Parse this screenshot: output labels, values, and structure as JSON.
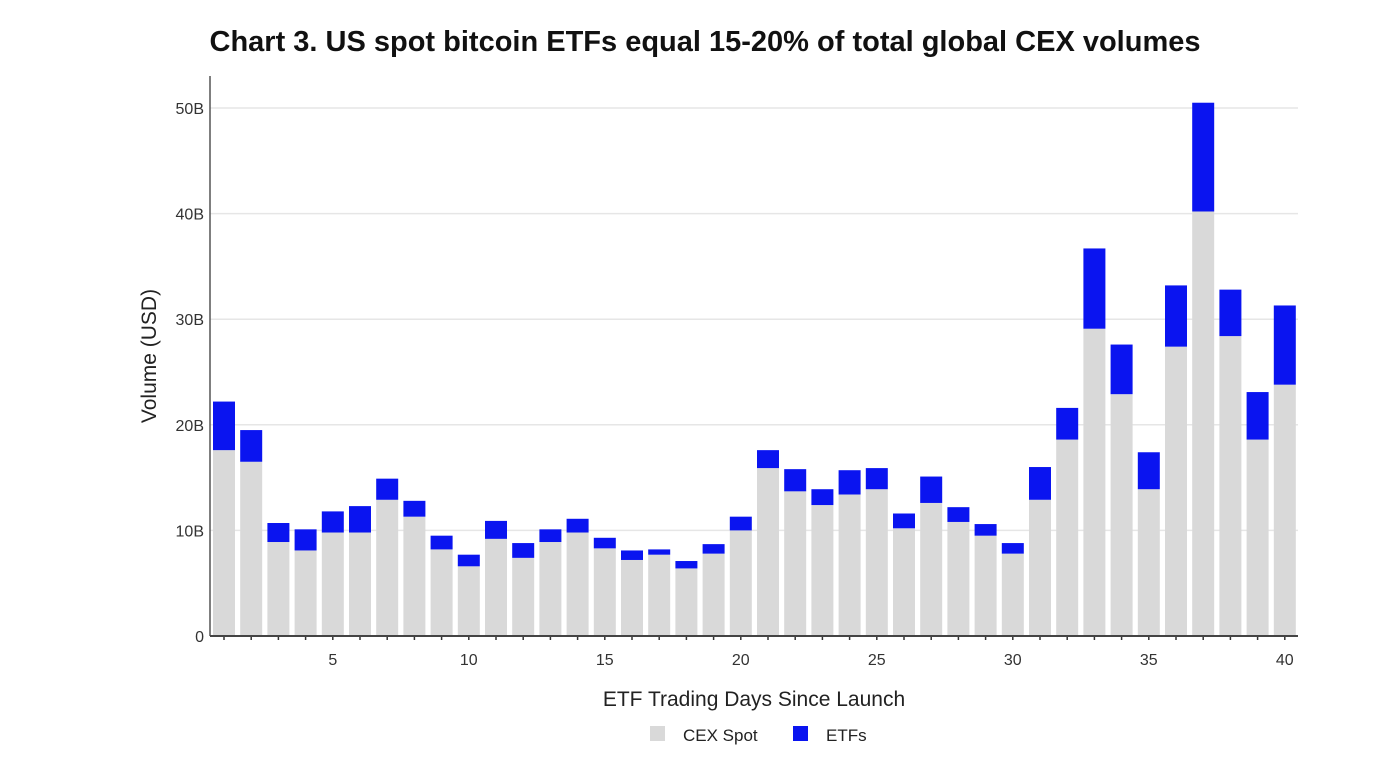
{
  "chart_data": {
    "type": "bar",
    "stacked": true,
    "title": "Chart 3. US spot bitcoin ETFs equal 15-20% of total global CEX volumes",
    "xlabel": "ETF Trading Days Since Launch",
    "ylabel": "Volume (USD)",
    "ylim": [
      0,
      52
    ],
    "yticks": [
      0,
      10,
      20,
      30,
      40,
      50
    ],
    "ytick_labels": [
      "0",
      "10B",
      "20B",
      "30B",
      "40B",
      "50B"
    ],
    "xticks": [
      5,
      10,
      15,
      20,
      25,
      30,
      35,
      40
    ],
    "xtick_labels": [
      "5",
      "10",
      "15",
      "20",
      "25",
      "30",
      "35",
      "40"
    ],
    "grid": "horizontal",
    "legend_placement": "bottom",
    "categories": [
      1,
      2,
      3,
      4,
      5,
      6,
      7,
      8,
      9,
      10,
      11,
      12,
      13,
      14,
      15,
      16,
      17,
      18,
      19,
      20,
      21,
      22,
      23,
      24,
      25,
      26,
      27,
      28,
      29,
      30,
      31,
      32,
      33,
      34,
      35,
      36,
      37,
      38,
      39,
      40
    ],
    "series": [
      {
        "name": "CEX Spot",
        "color": "#d9d9d9",
        "values": [
          17.6,
          16.5,
          8.9,
          8.1,
          9.8,
          9.8,
          12.9,
          11.3,
          8.2,
          6.6,
          9.2,
          7.4,
          8.9,
          9.8,
          8.3,
          7.2,
          7.7,
          6.4,
          7.8,
          10.0,
          15.9,
          13.7,
          12.4,
          13.4,
          13.9,
          10.2,
          12.6,
          10.8,
          9.5,
          7.8,
          12.9,
          18.6,
          29.1,
          22.9,
          13.9,
          27.4,
          40.2,
          28.4,
          18.6,
          23.8
        ]
      },
      {
        "name": "ETFs",
        "color": "#0a14f0",
        "values": [
          4.6,
          3.0,
          1.8,
          2.0,
          2.0,
          2.5,
          2.0,
          1.5,
          1.3,
          1.1,
          1.7,
          1.4,
          1.2,
          1.3,
          1.0,
          0.9,
          0.5,
          0.7,
          0.9,
          1.3,
          1.7,
          2.1,
          1.5,
          2.3,
          2.0,
          1.4,
          2.5,
          1.4,
          1.1,
          1.0,
          3.1,
          3.0,
          7.6,
          4.7,
          3.5,
          5.8,
          10.3,
          4.4,
          4.5,
          7.5
        ]
      }
    ]
  }
}
